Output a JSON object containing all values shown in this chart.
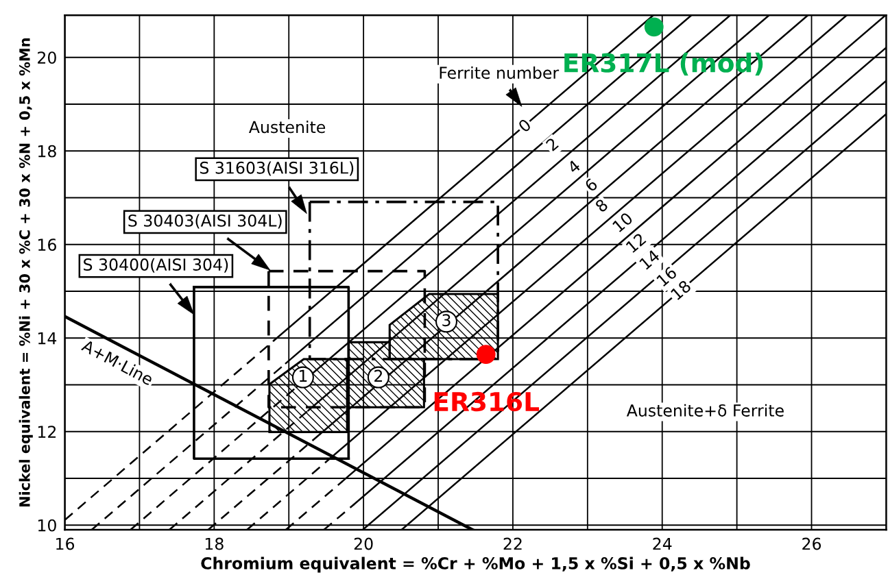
{
  "chart_data": {
    "type": "line",
    "xlabel": "Chromium equivalent = %Cr + %Mo + 1,5 x %Si + 0,5 x %Nb",
    "ylabel": "Nickel equivalent = %Ni + 30 x %C + 30 x %N + 0,5 x %Mn",
    "xlim": [
      16,
      27
    ],
    "ylim": [
      9.9,
      20.9
    ],
    "xticks": [
      16,
      {
        "value": 17,
        "label": null
      },
      18,
      {
        "value": 19,
        "label": null
      },
      20,
      {
        "value": 21,
        "label": null
      },
      22,
      {
        "value": 23,
        "label": null
      },
      24,
      {
        "value": 25,
        "label": null
      },
      26
    ],
    "yticks": [
      10,
      {
        "value": 11,
        "label": null
      },
      12,
      {
        "value": 13,
        "label": null
      },
      14,
      {
        "value": 15,
        "label": null
      },
      16,
      {
        "value": 17,
        "label": null
      },
      18,
      {
        "value": 19,
        "label": null
      },
      20
    ],
    "grid": true,
    "series": [
      {
        "type": "line",
        "color": "#000000",
        "line_style": "dashed",
        "x": [
          16,
          18.81
        ],
        "values": [
          10.11,
          13.96
        ]
      },
      {
        "type": "line",
        "color": "#000000",
        "line_style": "solid",
        "x": [
          18.81,
          23.88
        ],
        "values": [
          13.96,
          20.9
        ]
      },
      {
        "type": "line",
        "color": "#000000",
        "line_style": "dashed",
        "x": [
          16.36,
          18.96
        ],
        "values": [
          9.9,
          13.46
        ]
      },
      {
        "type": "line",
        "color": "#000000",
        "line_style": "solid",
        "x": [
          18.96,
          24.39
        ],
        "values": [
          13.46,
          20.9
        ]
      },
      {
        "type": "line",
        "color": "#000000",
        "line_style": "dashed",
        "x": [
          16.88,
          19.11
        ],
        "values": [
          9.9,
          12.96
        ]
      },
      {
        "type": "line",
        "color": "#000000",
        "line_style": "solid",
        "x": [
          19.11,
          24.91
        ],
        "values": [
          12.96,
          20.9
        ]
      },
      {
        "type": "line",
        "color": "#000000",
        "line_style": "dashed",
        "x": [
          17.4,
          19.26
        ],
        "values": [
          9.9,
          12.45
        ]
      },
      {
        "type": "line",
        "color": "#000000",
        "line_style": "solid",
        "x": [
          19.26,
          25.43
        ],
        "values": [
          12.45,
          20.9
        ]
      },
      {
        "type": "line",
        "color": "#000000",
        "line_style": "dashed",
        "x": [
          17.92,
          19.42
        ],
        "values": [
          9.9,
          11.95
        ]
      },
      {
        "type": "line",
        "color": "#000000",
        "line_style": "solid",
        "x": [
          19.42,
          25.95
        ],
        "values": [
          11.95,
          20.9
        ]
      },
      {
        "type": "line",
        "color": "#000000",
        "line_style": "dashed",
        "x": [
          18.44,
          19.57
        ],
        "values": [
          9.9,
          11.45
        ]
      },
      {
        "type": "line",
        "color": "#000000",
        "line_style": "solid",
        "x": [
          19.57,
          26.47
        ],
        "values": [
          11.45,
          20.9
        ]
      },
      {
        "type": "line",
        "color": "#000000",
        "line_style": "dashed",
        "x": [
          18.96,
          19.72
        ],
        "values": [
          9.9,
          10.94
        ]
      },
      {
        "type": "line",
        "color": "#000000",
        "line_style": "solid",
        "x": [
          19.72,
          26.99
        ],
        "values": [
          10.94,
          20.9
        ]
      },
      {
        "type": "line",
        "color": "#000000",
        "line_style": "dashed",
        "x": [
          19.47,
          19.87
        ],
        "values": [
          9.9,
          10.44
        ]
      },
      {
        "type": "line",
        "color": "#000000",
        "line_style": "solid",
        "x": [
          19.87,
          27
        ],
        "values": [
          10.44,
          20.21
        ]
      },
      {
        "type": "line",
        "color": "#000000",
        "line_style": "solid",
        "x": [
          19.99,
          27
        ],
        "values": [
          9.9,
          19.5
        ]
      },
      {
        "type": "line",
        "color": "#000000",
        "line_style": "solid",
        "x": [
          20.51,
          27
        ],
        "values": [
          9.9,
          18.79
        ]
      },
      {
        "color": "#000000",
        "line_style": "solid",
        "x": [
          16,
          21.46
        ],
        "values": [
          14.46,
          9.9
        ]
      },
      {
        "type": "line",
        "color": "#000000",
        "line_style": "solid",
        "x": [
          17.73,
          19.8,
          19.8
        ],
        "values": [
          15.09,
          15.09,
          11.42
        ]
      },
      {
        "type": "line",
        "color": "#000000",
        "line_style": "solid",
        "x": [
          17.73,
          17.73,
          19.8
        ],
        "values": [
          15.09,
          11.42,
          11.42
        ]
      },
      {
        "type": "line",
        "color": "#000000",
        "line_style": "dashed",
        "x": [
          18.73,
          20.82,
          20.82
        ],
        "values": [
          15.43,
          15.43,
          12.52
        ]
      },
      {
        "type": "line",
        "color": "#000000",
        "line_style": "dashed",
        "x": [
          18.73,
          18.73,
          20.82
        ],
        "values": [
          15.43,
          12.52,
          12.52
        ]
      },
      {
        "type": "line",
        "color": "#000000",
        "line_style": "dashdot",
        "x": [
          19.28,
          21.8,
          21.8
        ],
        "values": [
          16.91,
          16.91,
          13.55
        ]
      },
      {
        "type": "line",
        "color": "#000000",
        "line_style": "dashdot",
        "x": [
          19.28,
          19.28,
          21.8
        ],
        "values": [
          16.91,
          13.55,
          13.55
        ]
      },
      {
        "type": "area",
        "color": "#000000",
        "x": [
          18.74,
          19.2,
          19.78,
          19.78,
          18.74
        ],
        "values": [
          13.01,
          13.55,
          13.55,
          11.99,
          11.99
        ]
      },
      {
        "type": "area",
        "color": "#000000",
        "x": [
          19.8,
          20.35,
          20.35,
          20.81,
          20.81,
          19.8
        ],
        "values": [
          13.91,
          13.91,
          13.55,
          13.55,
          12.52,
          12.52
        ]
      },
      {
        "type": "area",
        "color": "#000000",
        "x": [
          20.35,
          20.88,
          21.8,
          21.8,
          20.35
        ],
        "values": [
          14.28,
          14.94,
          14.94,
          13.55,
          13.55
        ]
      },
      {
        "type": "scatter",
        "name": "ER316L",
        "color": "#ff0000",
        "x": [
          21.64
        ],
        "values": [
          13.65
        ]
      },
      {
        "type": "scatter",
        "name": "ER317L (mod)",
        "color": "#00b050",
        "x": [
          23.89
        ],
        "values": [
          20.65
        ]
      }
    ],
    "annotations": [
      "Ferrite number",
      "Austenite",
      "Austenite+δ Ferrite",
      "S 31603(AISI 316L)",
      "S 30403(AISI 304L)",
      "S 30400(AISI 304)",
      "A+M·Line",
      "1",
      "2",
      "3",
      {
        "text": "0",
        "x": 22.17,
        "y": 18.52
      },
      {
        "text": "2",
        "x": 22.54,
        "y": 18.12
      },
      {
        "text": "4",
        "x": 22.83,
        "y": 17.64
      },
      {
        "text": "6",
        "x": 23.06,
        "y": 17.25
      },
      {
        "text": "8",
        "x": 23.2,
        "y": 16.81
      },
      {
        "text": "10",
        "x": 23.48,
        "y": 16.45
      },
      {
        "text": "12",
        "x": 23.66,
        "y": 16.01
      },
      {
        "text": "14",
        "x": 23.84,
        "y": 15.65
      },
      {
        "text": "16",
        "x": 24.07,
        "y": 15.29
      },
      {
        "text": "18",
        "x": 24.26,
        "y": 15.0
      }
    ]
  }
}
